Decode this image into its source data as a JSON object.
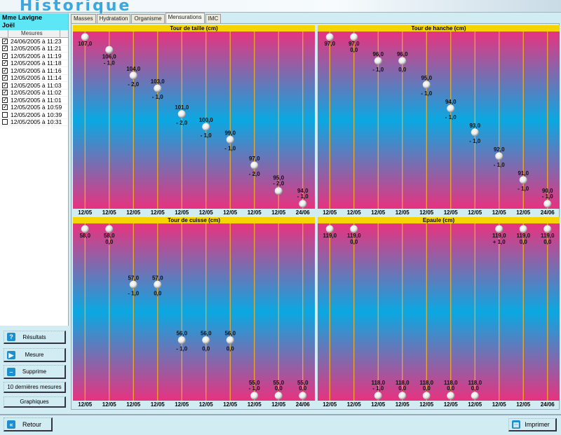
{
  "app": {
    "title": "Historique"
  },
  "patient": {
    "line1": "Mme Lavigne",
    "line2": "Joël"
  },
  "list": {
    "header": "Mesures",
    "items": [
      {
        "label": "24/06/2005 à 11:23",
        "checked": true
      },
      {
        "label": "12/05/2005 à 11:21",
        "checked": true
      },
      {
        "label": "12/05/2005 à 11:19",
        "checked": true
      },
      {
        "label": "12/05/2005 à 11:18",
        "checked": true
      },
      {
        "label": "12/05/2005 à 11:16",
        "checked": true
      },
      {
        "label": "12/05/2005 à 11:14",
        "checked": true
      },
      {
        "label": "12/05/2005 à 11:03",
        "checked": true
      },
      {
        "label": "12/05/2005 à 11:02",
        "checked": true
      },
      {
        "label": "12/05/2005 à 11:01",
        "checked": true
      },
      {
        "label": "12/05/2005 à 10:59",
        "checked": true
      },
      {
        "label": "12/05/2005 à 10:39",
        "checked": false
      },
      {
        "label": "12/05/2005 à 10:31",
        "checked": false
      }
    ]
  },
  "buttons": {
    "resultats": "Résultats",
    "mesure": "Mesure",
    "supprime": "Supprime",
    "dernieres": "10 dernières mesures",
    "graphiques": "Graphiques",
    "retour": "Retour",
    "imprimer": "Imprimer"
  },
  "tabs": [
    "Masses",
    "Hydratation",
    "Organisme",
    "Mensurations",
    "IMC"
  ],
  "active_tab": "Mensurations",
  "colors": {
    "title_bar": "#f6d400",
    "grad_pink": "#e8327f",
    "grad_blue": "#0aa8e2",
    "gridline": "#f0b020"
  },
  "chart_data": [
    {
      "type": "scatter",
      "title": "Tour de taille (cm)",
      "categories": [
        "12/05",
        "12/05",
        "12/05",
        "12/05",
        "12/05",
        "12/05",
        "12/05",
        "12/05",
        "12/05",
        "24/06"
      ],
      "values": [
        107,
        106,
        104,
        103,
        101,
        100,
        99,
        97,
        95,
        94
      ],
      "deltas": [
        "",
        "- 1,0",
        "- 2,0",
        "- 1,0",
        "- 2,0",
        "- 1,0",
        "- 1,0",
        "- 2,0",
        "- 2,0",
        "- 1,0"
      ]
    },
    {
      "type": "scatter",
      "title": "Tour de hanche (cm)",
      "categories": [
        "12/05",
        "12/05",
        "12/05",
        "12/05",
        "12/05",
        "12/05",
        "12/05",
        "12/05",
        "12/05",
        "24/06"
      ],
      "values": [
        97,
        97,
        96,
        96,
        95,
        94,
        93,
        92,
        91,
        90
      ],
      "deltas": [
        "",
        "0,0",
        "- 1,0",
        "0,0",
        "- 1,0",
        "- 1,0",
        "- 1,0",
        "- 1,0",
        "- 1,0",
        "- 1,0"
      ]
    },
    {
      "type": "scatter",
      "title": "Tour de cuisse (cm)",
      "categories": [
        "12/05",
        "12/05",
        "12/05",
        "12/05",
        "12/05",
        "12/05",
        "12/05",
        "12/05",
        "12/05",
        "24/06"
      ],
      "values": [
        58,
        58,
        57,
        57,
        56,
        56,
        56,
        55,
        55,
        55
      ],
      "deltas": [
        "",
        "0,0",
        "- 1,0",
        "0,0",
        "- 1,0",
        "0,0",
        "0,0",
        "- 1,0",
        "0,0",
        "0,0"
      ]
    },
    {
      "type": "scatter",
      "title": "Epaule (cm)",
      "categories": [
        "12/05",
        "12/05",
        "12/05",
        "12/05",
        "12/05",
        "12/05",
        "12/05",
        "12/05",
        "12/05",
        "24/06"
      ],
      "values": [
        119,
        119,
        118,
        118,
        118,
        118,
        118,
        119,
        119,
        119
      ],
      "deltas": [
        "",
        "0,0",
        "- 1,0",
        "0,0",
        "0,0",
        "0,0",
        "0,0",
        "+ 1,0",
        "0,0",
        "0,0"
      ]
    }
  ]
}
